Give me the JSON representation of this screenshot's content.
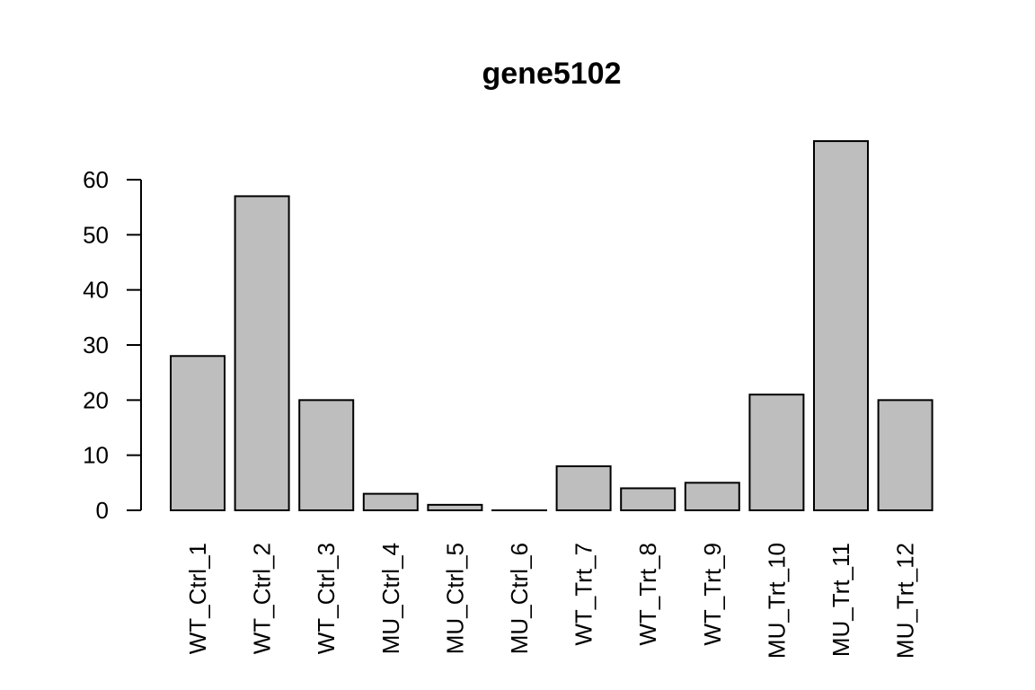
{
  "chart_data": {
    "type": "bar",
    "title": "gene5102",
    "xlabel": "",
    "ylabel": "",
    "categories": [
      "WT_Ctrl_1",
      "WT_Ctrl_2",
      "WT_Ctrl_3",
      "MU_Ctrl_4",
      "MU_Ctrl_5",
      "MU_Ctrl_6",
      "WT_Trt_7",
      "WT_Trt_8",
      "WT_Trt_9",
      "MU_Trt_10",
      "MU_Trt_11",
      "MU_Trt_12"
    ],
    "values": [
      28,
      57,
      20,
      3,
      1,
      0,
      8,
      4,
      5,
      21,
      67,
      20
    ],
    "yticks": [
      0,
      10,
      20,
      30,
      40,
      50,
      60
    ],
    "ylim": [
      0,
      67
    ],
    "grid": false,
    "bar_color": "#bebebe",
    "bar_stroke": "#000000"
  }
}
